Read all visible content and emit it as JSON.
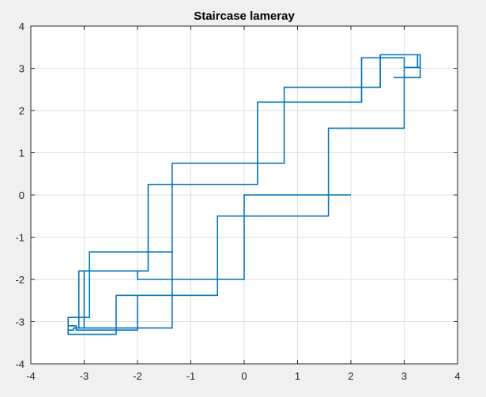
{
  "chart_data": {
    "type": "line",
    "title": "Staircase lameray",
    "xlabel": "",
    "ylabel": "",
    "xlim": [
      -4,
      4
    ],
    "ylim": [
      -4,
      4
    ],
    "xticks": [
      -4,
      -3,
      -2,
      -1,
      0,
      1,
      2,
      3,
      4
    ],
    "yticks": [
      -4,
      -3,
      -2,
      -1,
      0,
      1,
      2,
      3,
      4
    ],
    "grid": true,
    "colors": {
      "background": "#f0f0f0",
      "axes_background": "#ffffff",
      "series": "#0072bd",
      "grid": "#dfdfdf",
      "axis": "#262626"
    },
    "series": [
      {
        "x": [
          2.0,
          1.58,
          1.58,
          -0.5,
          -0.5,
          -2.0,
          -2.0,
          -3.15,
          -3.15,
          -3.3,
          -3.3,
          -2.4,
          -2.4,
          -0.5,
          -0.5,
          0.0,
          0.0,
          1.58,
          1.58,
          3.0,
          3.0,
          3.25,
          3.25,
          2.55,
          2.55,
          0.75,
          0.75,
          -1.35,
          -1.35,
          -2.9,
          -2.9,
          -3.3,
          -3.3,
          -3.2,
          -3.2,
          -1.35,
          -1.35,
          0.75,
          0.75,
          2.55,
          2.55,
          3.3,
          3.3,
          3.0,
          3.0,
          2.2,
          2.2,
          0.25,
          0.25,
          -1.8,
          -1.8,
          -3.1,
          -3.1,
          -3.0,
          -3.0,
          -2.0,
          -2.0,
          -0.5,
          -0.5,
          0.0,
          0.0,
          1.58,
          1.58,
          3.0,
          3.0,
          3.3,
          3.3,
          2.8
        ],
        "y": [
          0.0,
          0.0,
          -0.5,
          -0.5,
          -2.38,
          -2.38,
          -3.2,
          -3.2,
          -3.1,
          -3.1,
          -3.3,
          -3.3,
          -2.38,
          -2.38,
          -2.0,
          -2.0,
          0.0,
          0.0,
          1.58,
          1.58,
          3.02,
          3.02,
          3.32,
          3.32,
          2.55,
          2.55,
          0.75,
          0.75,
          -1.35,
          -1.35,
          -2.9,
          -2.9,
          -3.2,
          -3.2,
          -3.15,
          -3.15,
          0.75,
          0.75,
          2.55,
          2.55,
          3.32,
          3.32,
          3.02,
          3.02,
          3.25,
          3.25,
          2.2,
          2.2,
          0.25,
          0.25,
          -1.8,
          -1.8,
          -3.15,
          -3.15,
          -1.8,
          -1.8,
          -2.0,
          -2.0,
          -0.5,
          -0.5,
          0.0,
          0.0,
          1.58,
          1.58,
          3.02,
          3.02,
          2.78,
          2.78
        ]
      }
    ]
  }
}
